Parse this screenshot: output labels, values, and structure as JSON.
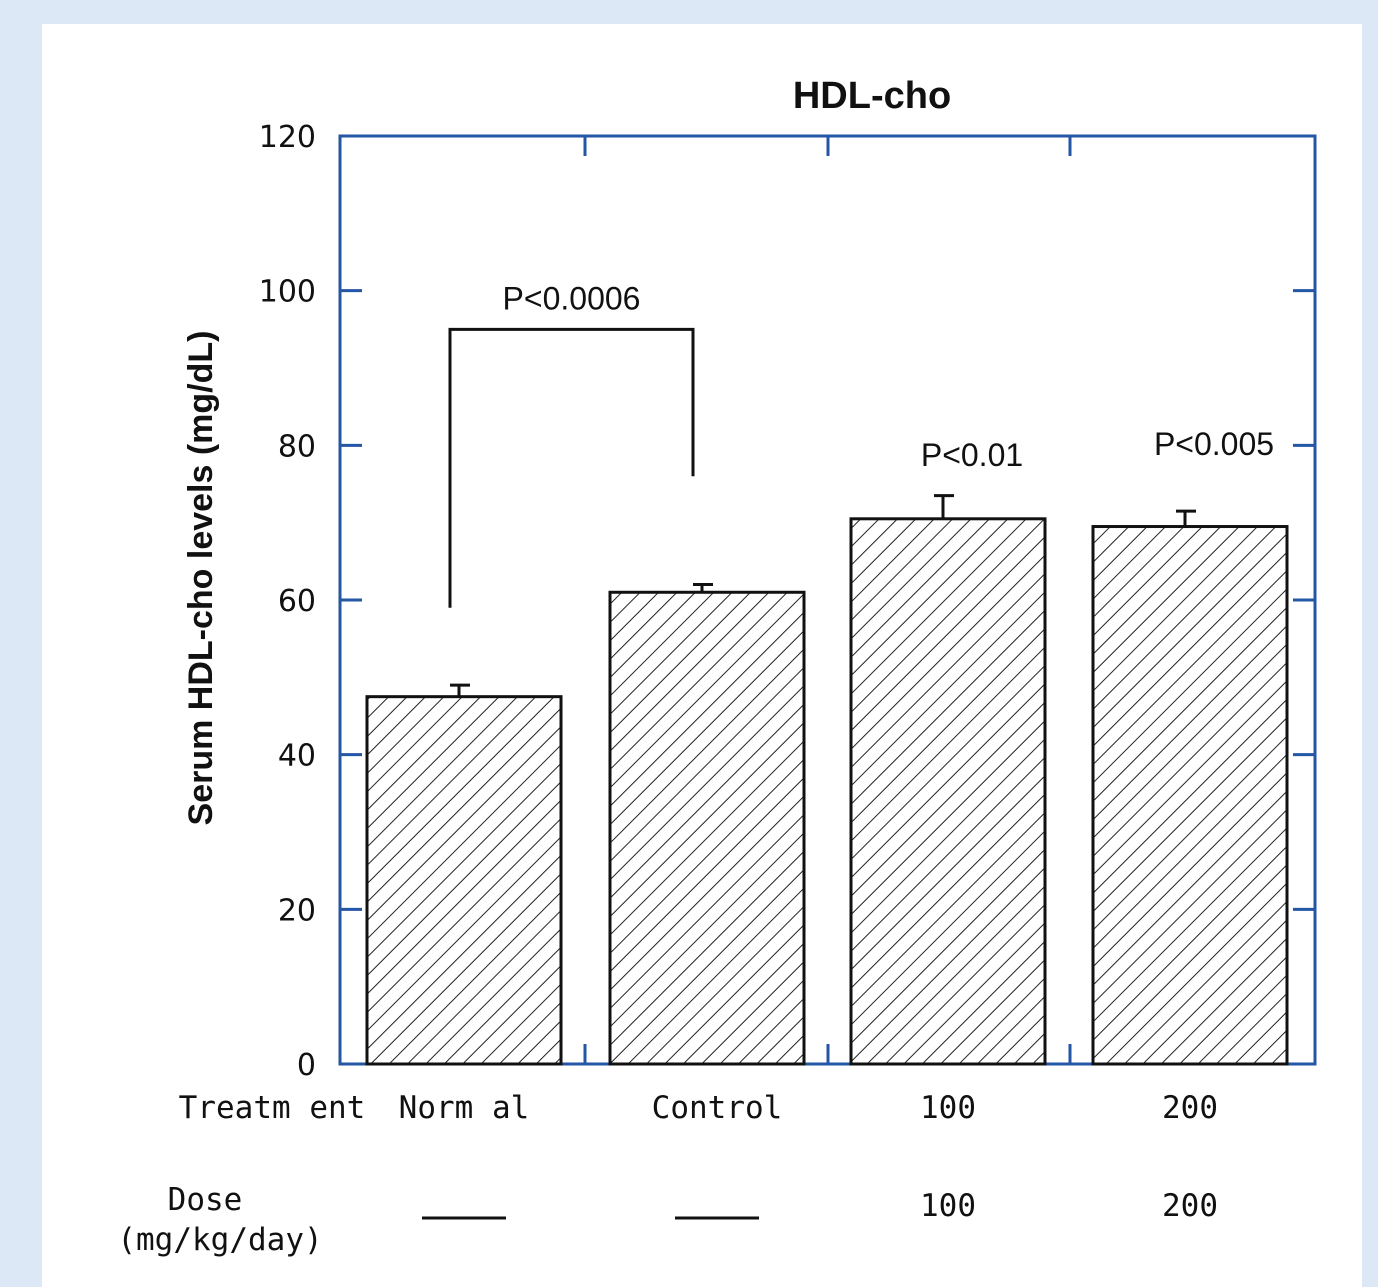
{
  "chart_data": {
    "type": "bar",
    "title": "HDL-cho",
    "ylabel": "Serum HDL-cho levels (mg/dL)",
    "ylim": [
      0,
      120
    ],
    "yticks": [
      0,
      20,
      40,
      60,
      80,
      100,
      120
    ],
    "categories": [
      "Norm al",
      "Control",
      "100",
      "200"
    ],
    "values": [
      47.5,
      61,
      70.5,
      69.5
    ],
    "errors": [
      1.5,
      1,
      3,
      2
    ],
    "bar_pattern": "diagonal-hatch",
    "annotations": [
      {
        "text": "P<0.0006",
        "bracket": [
          "Norm al",
          "Control"
        ]
      },
      {
        "text": "P<0.01",
        "category": "100"
      },
      {
        "text": "P<0.005",
        "category": "200"
      }
    ],
    "table_rows": [
      {
        "label": "Treatm ent",
        "values": [
          "Norm al",
          "Control",
          "100",
          "200"
        ]
      },
      {
        "label": [
          "Dose",
          "(mg/kg/day)"
        ],
        "values": [
          "—",
          "—",
          "100",
          "200"
        ]
      }
    ],
    "colors": {
      "frame": "#2456a6",
      "bars": "#1a1a1a",
      "background": "#dce8f5"
    }
  }
}
